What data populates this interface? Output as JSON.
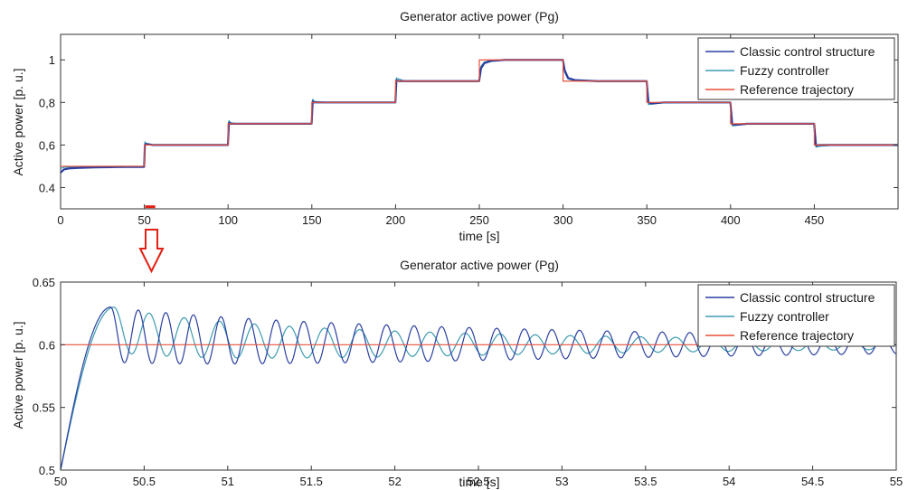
{
  "chart_data": [
    {
      "type": "line",
      "title": "Generator active power (Pg)",
      "xlabel": "time [s]",
      "ylabel": "Active power [p. u.]",
      "xlim": [
        0,
        500
      ],
      "ylim": [
        0.3,
        1.12
      ],
      "xticks": [
        0,
        50,
        100,
        150,
        200,
        250,
        300,
        350,
        400,
        450
      ],
      "xtick_labels": [
        "0",
        "50",
        "100",
        "150",
        "200",
        "250",
        "300",
        "350",
        "400",
        "450"
      ],
      "yticks": [
        0.4,
        0.6,
        0.8,
        1.0
      ],
      "ytick_labels": [
        "0.4",
        "0,6",
        "0,8",
        "1"
      ],
      "grid": false,
      "legend_position": "top-right",
      "series": [
        {
          "name": "Classic control structure",
          "color": "#2a3fa0",
          "x": [
            0,
            2,
            5,
            10,
            20,
            30,
            40,
            49.9,
            50.3,
            51,
            55,
            70,
            90,
            99.9,
            100.5,
            101.5,
            105,
            120,
            140,
            149.9,
            150.5,
            151.5,
            160,
            180,
            199.9,
            200.5,
            202,
            205,
            220,
            240,
            249.9,
            251,
            253,
            257,
            265,
            280,
            299.9,
            301,
            303,
            307,
            320,
            340,
            349.9,
            351,
            353,
            360,
            380,
            399.9,
            401,
            403,
            410,
            430,
            449.9,
            451,
            453,
            460,
            480,
            500
          ],
          "y": [
            0.47,
            0.485,
            0.49,
            0.492,
            0.495,
            0.496,
            0.497,
            0.497,
            0.6,
            0.605,
            0.6,
            0.6,
            0.6,
            0.6,
            0.705,
            0.7,
            0.7,
            0.7,
            0.7,
            0.7,
            0.805,
            0.8,
            0.8,
            0.8,
            0.8,
            0.905,
            0.9,
            0.9,
            0.9,
            0.9,
            0.9,
            0.96,
            0.985,
            0.995,
            1.0,
            1.0,
            1.0,
            0.95,
            0.915,
            0.905,
            0.9,
            0.9,
            0.9,
            0.8,
            0.795,
            0.8,
            0.8,
            0.8,
            0.698,
            0.695,
            0.7,
            0.7,
            0.7,
            0.598,
            0.6,
            0.6,
            0.6,
            0.6
          ]
        },
        {
          "name": "Fuzzy controller",
          "color": "#3d9bb0",
          "x": [
            0,
            2,
            5,
            10,
            20,
            30,
            40,
            49.9,
            50.3,
            51,
            55,
            70,
            90,
            99.9,
            100.5,
            101.5,
            105,
            120,
            140,
            149.9,
            150.5,
            151.5,
            160,
            180,
            199.9,
            200.5,
            202,
            205,
            220,
            240,
            249.9,
            251,
            253,
            257,
            265,
            280,
            299.9,
            301,
            303,
            307,
            320,
            340,
            349.9,
            351,
            353,
            360,
            380,
            399.9,
            401,
            403,
            410,
            430,
            449.9,
            451,
            453,
            460,
            480,
            500
          ],
          "y": [
            0.49,
            0.495,
            0.497,
            0.498,
            0.499,
            0.5,
            0.5,
            0.5,
            0.615,
            0.608,
            0.602,
            0.6,
            0.6,
            0.6,
            0.715,
            0.705,
            0.7,
            0.7,
            0.7,
            0.7,
            0.815,
            0.805,
            0.8,
            0.8,
            0.8,
            0.915,
            0.91,
            0.902,
            0.9,
            0.9,
            0.9,
            0.97,
            0.99,
            0.998,
            1.0,
            1.0,
            1.0,
            0.94,
            0.91,
            0.902,
            0.9,
            0.9,
            0.9,
            0.79,
            0.792,
            0.798,
            0.8,
            0.8,
            0.69,
            0.692,
            0.698,
            0.7,
            0.7,
            0.59,
            0.594,
            0.598,
            0.6,
            0.6
          ]
        },
        {
          "name": "Reference trajectory",
          "color": "#e8503a",
          "x": [
            0,
            50,
            50,
            100,
            100,
            150,
            150,
            200,
            200,
            250,
            250,
            300,
            300,
            350,
            350,
            400,
            400,
            450,
            450,
            500
          ],
          "y": [
            0.5,
            0.5,
            0.6,
            0.6,
            0.7,
            0.7,
            0.8,
            0.8,
            0.9,
            0.9,
            1.0,
            1.0,
            0.9,
            0.9,
            0.8,
            0.8,
            0.7,
            0.7,
            0.6,
            0.6
          ]
        }
      ],
      "annotations": [
        {
          "type": "marker",
          "color": "#e32014",
          "x": [
            50.5,
            56.5
          ],
          "y": [
            0.31,
            0.31
          ]
        }
      ]
    },
    {
      "type": "line",
      "title": "Generator active power (Pg)",
      "xlabel": "time [s]",
      "ylabel": "Active power [p. u.]",
      "xlim": [
        50,
        55
      ],
      "ylim": [
        0.5,
        0.65
      ],
      "xticks": [
        50,
        50.5,
        51,
        51.5,
        52,
        52.5,
        53,
        53.5,
        54,
        54.5,
        55
      ],
      "xtick_labels": [
        "50",
        "50.5",
        "51",
        "51.5",
        "52",
        "52.5",
        "53",
        "53.5",
        "54",
        "54.5",
        "55"
      ],
      "yticks": [
        0.5,
        0.55,
        0.6,
        0.65
      ],
      "ytick_labels": [
        "0.5",
        "0.55",
        "0.6",
        "0.65"
      ],
      "grid": false,
      "legend_position": "top-right",
      "series": [
        {
          "name": "Classic control structure",
          "color": "#2a3fa0",
          "model": {
            "start": 50,
            "rise_end": 50.3,
            "y0": 0.5,
            "y_final": 0.6,
            "amp0": 0.022,
            "tau": 4.2,
            "period": 0.165,
            "offset0": 0.008,
            "offset_tau": 0.8
          }
        },
        {
          "name": "Fuzzy controller",
          "color": "#3d9bb0",
          "model": {
            "start": 50,
            "rise_end": 50.32,
            "y0": 0.5,
            "y_final": 0.6,
            "amp0": 0.018,
            "tau": 3.0,
            "period": 0.21,
            "offset0": 0.012,
            "offset_tau": 0.6
          }
        },
        {
          "name": "Reference trajectory",
          "color": "#e8503a",
          "x": [
            50,
            55
          ],
          "y": [
            0.6,
            0.6
          ]
        }
      ]
    }
  ],
  "arrow": {
    "color": "#e32014",
    "direction": "down"
  }
}
